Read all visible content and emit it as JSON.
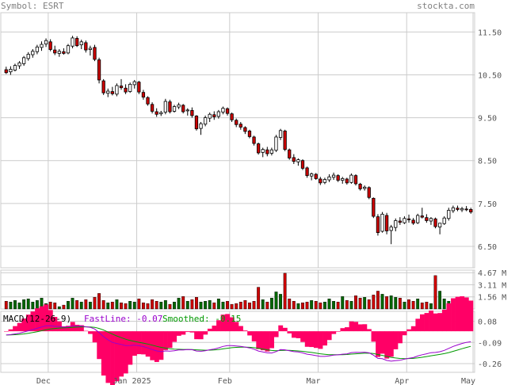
{
  "header": {
    "symbol": "Symbol: ESRT",
    "site": "stockta.com"
  },
  "colors": {
    "up": "#ffffff",
    "down": "#cc0000",
    "vol_up": "#006600",
    "vol_down": "#cc0000",
    "macd_fast": "#9900cc",
    "macd_smooth": "#009900",
    "macd_hist": "#ff0066",
    "grid": "#cccccc"
  },
  "chart_data": [
    {
      "type": "candlestick",
      "panel": "price",
      "y_ticks": [
        "11.50",
        "10.50",
        "9.50",
        "8.50",
        "7.50",
        "6.50"
      ],
      "ylim": [
        6.0,
        11.95
      ],
      "x_ticks": [
        "Dec",
        "Jan 2025",
        "Feb",
        "Mar",
        "Apr",
        "May"
      ],
      "grid": true,
      "ohlc": [
        [
          10.62,
          10.69,
          10.52,
          10.55
        ],
        [
          10.57,
          10.7,
          10.5,
          10.63
        ],
        [
          10.61,
          10.76,
          10.58,
          10.72
        ],
        [
          10.71,
          10.82,
          10.64,
          10.78
        ],
        [
          10.76,
          10.94,
          10.71,
          10.9
        ],
        [
          10.88,
          11.03,
          10.83,
          10.98
        ],
        [
          10.97,
          11.1,
          10.9,
          11.05
        ],
        [
          11.04,
          11.2,
          10.98,
          11.15
        ],
        [
          11.14,
          11.28,
          11.06,
          11.21
        ],
        [
          11.22,
          11.35,
          11.15,
          11.3
        ],
        [
          11.27,
          11.33,
          11.05,
          11.09
        ],
        [
          11.08,
          11.18,
          10.96,
          11.01
        ],
        [
          11.0,
          11.1,
          10.92,
          11.05
        ],
        [
          11.04,
          11.12,
          10.97,
          11.0
        ],
        [
          11.01,
          11.22,
          10.98,
          11.18
        ],
        [
          11.17,
          11.41,
          11.12,
          11.36
        ],
        [
          11.35,
          11.4,
          11.15,
          11.18
        ],
        [
          11.2,
          11.32,
          11.1,
          11.27
        ],
        [
          11.25,
          11.3,
          11.02,
          11.08
        ],
        [
          11.09,
          11.18,
          10.95,
          11.12
        ],
        [
          11.14,
          11.2,
          10.82,
          10.86
        ],
        [
          10.85,
          10.9,
          10.3,
          10.38
        ],
        [
          10.36,
          10.4,
          10.03,
          10.08
        ],
        [
          10.07,
          10.18,
          9.98,
          10.12
        ],
        [
          10.11,
          10.22,
          10.02,
          10.06
        ],
        [
          10.05,
          10.3,
          10.0,
          10.25
        ],
        [
          10.24,
          10.4,
          10.15,
          10.2
        ],
        [
          10.19,
          10.28,
          10.05,
          10.1
        ],
        [
          10.11,
          10.32,
          10.08,
          10.28
        ],
        [
          10.27,
          10.38,
          10.18,
          10.34
        ],
        [
          10.33,
          10.36,
          10.05,
          10.1
        ],
        [
          10.09,
          10.15,
          9.92,
          9.98
        ],
        [
          9.97,
          10.0,
          9.78,
          9.82
        ],
        [
          9.81,
          9.86,
          9.6,
          9.65
        ],
        [
          9.64,
          9.72,
          9.52,
          9.58
        ],
        [
          9.59,
          9.66,
          9.54,
          9.62
        ],
        [
          9.63,
          9.94,
          9.58,
          9.88
        ],
        [
          9.87,
          9.92,
          9.6,
          9.64
        ],
        [
          9.65,
          9.8,
          9.62,
          9.76
        ],
        [
          9.75,
          9.85,
          9.7,
          9.8
        ],
        [
          9.79,
          9.82,
          9.6,
          9.64
        ],
        [
          9.66,
          9.72,
          9.55,
          9.68
        ],
        [
          9.67,
          9.74,
          9.5,
          9.55
        ],
        [
          9.54,
          9.56,
          9.2,
          9.24
        ],
        [
          9.25,
          9.4,
          9.1,
          9.36
        ],
        [
          9.35,
          9.55,
          9.3,
          9.5
        ],
        [
          9.49,
          9.62,
          9.4,
          9.58
        ],
        [
          9.57,
          9.65,
          9.45,
          9.52
        ],
        [
          9.53,
          9.68,
          9.48,
          9.64
        ],
        [
          9.63,
          9.76,
          9.58,
          9.72
        ],
        [
          9.71,
          9.74,
          9.55,
          9.6
        ],
        [
          9.59,
          9.62,
          9.4,
          9.45
        ],
        [
          9.44,
          9.48,
          9.28,
          9.34
        ],
        [
          9.35,
          9.4,
          9.22,
          9.28
        ],
        [
          9.27,
          9.3,
          9.12,
          9.18
        ],
        [
          9.19,
          9.22,
          9.02,
          9.06
        ],
        [
          9.05,
          9.08,
          8.85,
          8.9
        ],
        [
          8.89,
          8.92,
          8.64,
          8.68
        ],
        [
          8.69,
          8.8,
          8.58,
          8.76
        ],
        [
          8.75,
          8.82,
          8.6,
          8.66
        ],
        [
          8.67,
          8.8,
          8.62,
          8.75
        ],
        [
          8.74,
          9.1,
          8.7,
          9.05
        ],
        [
          9.04,
          9.24,
          8.98,
          9.2
        ],
        [
          9.19,
          9.22,
          8.72,
          8.76
        ],
        [
          8.75,
          8.78,
          8.52,
          8.56
        ],
        [
          8.57,
          8.65,
          8.42,
          8.48
        ],
        [
          8.47,
          8.55,
          8.38,
          8.52
        ],
        [
          8.5,
          8.53,
          8.28,
          8.32
        ],
        [
          8.33,
          8.36,
          8.1,
          8.15
        ],
        [
          8.14,
          8.22,
          8.04,
          8.19
        ],
        [
          8.18,
          8.21,
          8.05,
          8.08
        ],
        [
          8.07,
          8.12,
          7.93,
          7.98
        ],
        [
          7.99,
          8.1,
          7.95,
          8.06
        ],
        [
          8.05,
          8.18,
          8.0,
          8.12
        ],
        [
          8.11,
          8.22,
          8.05,
          8.16
        ],
        [
          8.15,
          8.18,
          8.0,
          8.04
        ],
        [
          8.04,
          8.12,
          7.96,
          8.08
        ],
        [
          8.07,
          8.1,
          7.94,
          7.98
        ],
        [
          7.99,
          8.2,
          7.96,
          8.16
        ],
        [
          8.15,
          8.18,
          7.92,
          7.96
        ],
        [
          7.95,
          7.98,
          7.8,
          7.84
        ],
        [
          7.85,
          7.92,
          7.8,
          7.88
        ],
        [
          7.87,
          7.9,
          7.6,
          7.64
        ],
        [
          7.62,
          7.64,
          7.16,
          7.2
        ],
        [
          7.19,
          7.25,
          6.75,
          6.82
        ],
        [
          6.85,
          7.3,
          6.82,
          7.25
        ],
        [
          7.22,
          7.28,
          6.78,
          6.86
        ],
        [
          6.87,
          7.0,
          6.55,
          6.95
        ],
        [
          6.94,
          7.15,
          6.85,
          7.1
        ],
        [
          7.09,
          7.18,
          7.0,
          7.06
        ],
        [
          7.05,
          7.2,
          7.02,
          7.15
        ],
        [
          7.14,
          7.24,
          7.05,
          7.12
        ],
        [
          7.11,
          7.16,
          7.0,
          7.04
        ],
        [
          7.05,
          7.26,
          7.02,
          7.22
        ],
        [
          7.21,
          7.4,
          7.15,
          7.18
        ],
        [
          7.17,
          7.25,
          7.05,
          7.1
        ],
        [
          7.09,
          7.18,
          7.0,
          7.15
        ],
        [
          7.14,
          7.17,
          6.92,
          6.96
        ],
        [
          6.95,
          7.0,
          6.78,
          7.04
        ],
        [
          7.03,
          7.2,
          7.0,
          7.16
        ],
        [
          7.15,
          7.4,
          7.1,
          7.34
        ],
        [
          7.33,
          7.45,
          7.28,
          7.4
        ],
        [
          7.39,
          7.45,
          7.32,
          7.36
        ],
        [
          7.35,
          7.42,
          7.3,
          7.38
        ],
        [
          7.37,
          7.44,
          7.32,
          7.36
        ],
        [
          7.36,
          7.4,
          7.26,
          7.3
        ]
      ]
    },
    {
      "type": "bar",
      "panel": "volume",
      "y_ticks": [
        "4.67 M",
        "3.11 M",
        "1.56 M"
      ],
      "ylim": [
        0,
        5.0
      ],
      "values": [
        1.0,
        0.9,
        1.1,
        0.8,
        1.2,
        1.3,
        0.9,
        1.1,
        1.4,
        0.7,
        0.9,
        0.8,
        0.3,
        0.5,
        1.0,
        1.4,
        1.1,
        0.9,
        1.2,
        0.9,
        1.5,
        2.0,
        1.1,
        0.8,
        0.9,
        1.2,
        0.8,
        0.7,
        1.0,
        0.9,
        1.3,
        0.8,
        0.7,
        1.2,
        1.0,
        0.9,
        1.1,
        0.6,
        0.9,
        1.4,
        1.6,
        1.0,
        1.2,
        1.5,
        0.9,
        1.0,
        1.1,
        0.8,
        1.3,
        0.9,
        1.0,
        0.6,
        0.7,
        0.9,
        1.1,
        0.8,
        1.0,
        2.8,
        1.2,
        0.9,
        1.4,
        2.2,
        1.9,
        4.6,
        1.3,
        1.0,
        0.7,
        0.8,
        0.9,
        1.1,
        1.0,
        0.8,
        0.9,
        1.3,
        1.0,
        0.9,
        1.6,
        1.1,
        1.0,
        1.7,
        1.4,
        1.5,
        1.2,
        1.8,
        2.3,
        1.9,
        1.6,
        1.7,
        1.5,
        1.4,
        0.9,
        1.2,
        1.0,
        1.3,
        0.8,
        0.9,
        0.7,
        4.3,
        2.3,
        1.3,
        1.0,
        1.1,
        0.9,
        0.8,
        1.0,
        0.7
      ]
    },
    {
      "type": "macd",
      "panel": "macd",
      "title": "MACD(12-26-9)",
      "legend": {
        "fast_label": "FastLine: -0.07",
        "smooth_label": "Smoothed: -0.15"
      },
      "y_ticks": [
        "0.08",
        "-0.09",
        "-0.26"
      ],
      "ylim": [
        -0.33,
        0.16
      ]
    }
  ]
}
